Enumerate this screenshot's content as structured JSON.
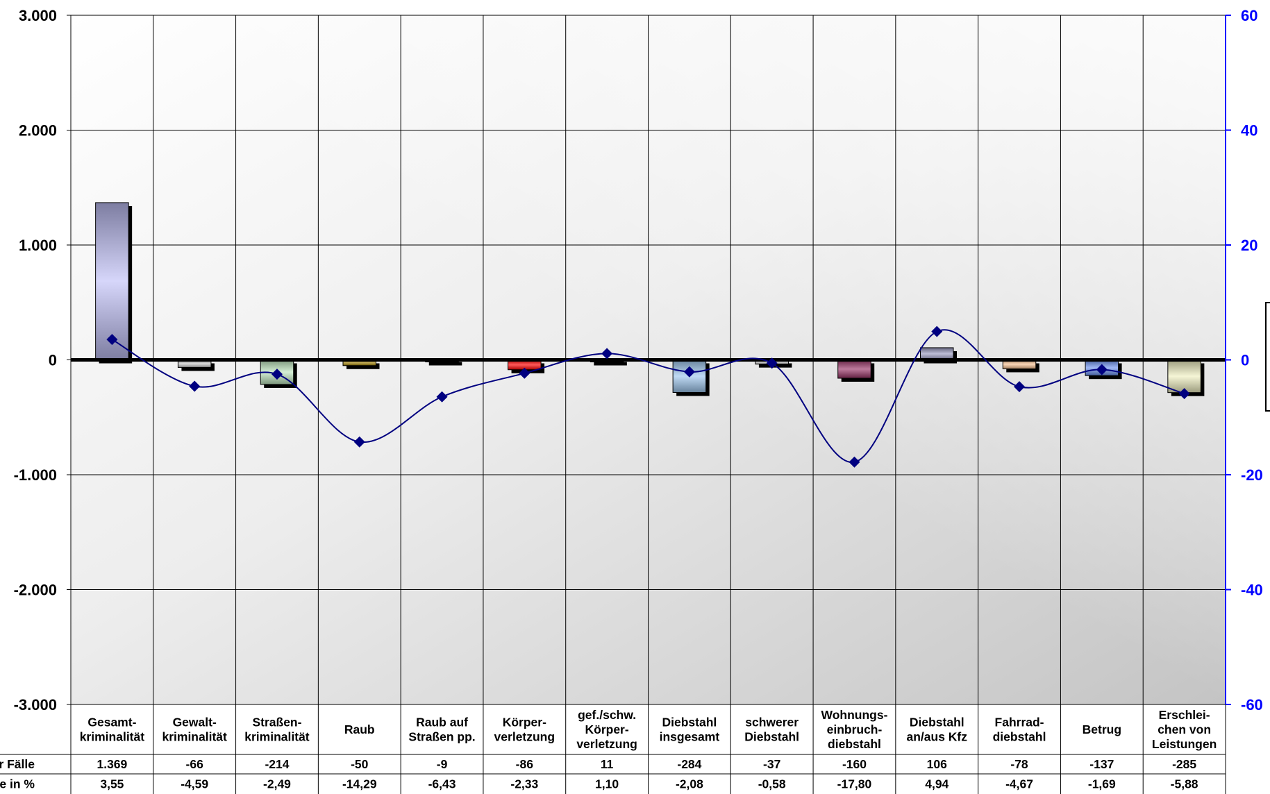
{
  "chart_data": {
    "type": "bar",
    "categories": [
      [
        "Gesamt-",
        "kriminalität"
      ],
      [
        "Gewalt-",
        "kriminalität"
      ],
      [
        "Straßen-",
        "kriminalität"
      ],
      [
        "Raub"
      ],
      [
        "Raub auf",
        "Straßen pp."
      ],
      [
        "Körper-",
        "verletzung"
      ],
      [
        "gef./schw.",
        "Körper-",
        "verletzung"
      ],
      [
        "Diebstahl",
        "insgesamt"
      ],
      [
        "schwerer",
        "Diebstahl"
      ],
      [
        "Wohnungs-",
        "einbruch-",
        "diebstahl"
      ],
      [
        "Diebstahl",
        "an/aus Kfz"
      ],
      [
        "Fahrrad-",
        "diebstahl"
      ],
      [
        "Betrug"
      ],
      [
        "Erschlei-",
        "chen von",
        "Leistungen"
      ]
    ],
    "series": [
      {
        "name": "r Fälle",
        "axis": "left",
        "type": "bar",
        "values": [
          1369,
          -66,
          -214,
          -50,
          -9,
          -86,
          11,
          -284,
          -37,
          -160,
          106,
          -78,
          -137,
          -285
        ],
        "labels": [
          "1.369",
          "-66",
          "-214",
          "-50",
          "-9",
          "-86",
          "11",
          "-284",
          "-37",
          "-160",
          "106",
          "-78",
          "-137",
          "-285"
        ],
        "colors": [
          "#c0c0f8",
          "#c8c8c8",
          "#bfe6bf",
          "#a08000",
          "#000000",
          "#ff0000",
          "#000000",
          "#9ec8f0",
          "#bbbbbb",
          "#993366",
          "#9a9ac0",
          "#f8c090",
          "#6a90f0",
          "#f0f0c0"
        ]
      },
      {
        "name": "r Fälle in %",
        "axis": "right",
        "type": "line",
        "values": [
          3.55,
          -4.59,
          -2.49,
          -14.29,
          -6.43,
          -2.33,
          1.1,
          -2.08,
          -0.58,
          -17.8,
          4.94,
          -4.67,
          -1.69,
          -5.88
        ],
        "labels": [
          "3,55",
          "-4,59",
          "-2,49",
          "-14,29",
          "-6,43",
          "-2,33",
          "1,10",
          "-2,08",
          "-0,58",
          "-17,80",
          "4,94",
          "-4,67",
          "-1,69",
          "-5,88"
        ],
        "color": "#000080"
      }
    ],
    "ylim": [
      -3000,
      3000
    ],
    "y_ticks": [
      3000,
      2000,
      1000,
      0,
      -1000,
      -2000,
      -3000
    ],
    "y_tick_labels": [
      "3.000",
      "2.000",
      "1.000",
      "0",
      "-1.000",
      "-2.000",
      "-3.000"
    ],
    "y2lim": [
      -60,
      60
    ],
    "y2_ticks": [
      60,
      40,
      20,
      0,
      -20,
      -40,
      -60
    ],
    "y2_tick_labels": [
      "60",
      "40",
      "20",
      "0",
      "-20",
      "-40",
      "-60"
    ],
    "right_axis_color": "#0000ff",
    "grid": true,
    "data_table": true
  }
}
